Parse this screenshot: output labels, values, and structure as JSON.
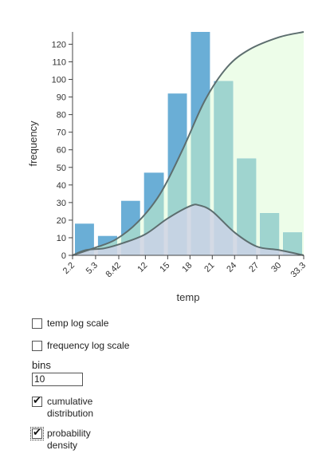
{
  "chart_data": {
    "type": "bar",
    "xlabel": "temp",
    "ylabel": "frequency",
    "x_ticks": [
      "2.2",
      "5.3",
      "8.42",
      "12",
      "15",
      "18",
      "21",
      "24",
      "27",
      "30",
      "33.3"
    ],
    "x_domain": [
      2.2,
      33.3
    ],
    "ylim": [
      0,
      127
    ],
    "y_ticks": [
      0,
      10,
      20,
      30,
      40,
      50,
      60,
      70,
      80,
      90,
      100,
      110,
      120
    ],
    "bins": [
      {
        "x0": 2.2,
        "x1": 5.3,
        "value": 18
      },
      {
        "x0": 5.3,
        "x1": 8.42,
        "value": 11
      },
      {
        "x0": 8.42,
        "x1": 11.5,
        "value": 31
      },
      {
        "x0": 11.5,
        "x1": 14.7,
        "value": 47
      },
      {
        "x0": 14.7,
        "x1": 17.8,
        "value": 92
      },
      {
        "x0": 17.8,
        "x1": 20.9,
        "value": 127
      },
      {
        "x0": 20.9,
        "x1": 24.0,
        "value": 99
      },
      {
        "x0": 24.0,
        "x1": 27.1,
        "value": 55
      },
      {
        "x0": 27.1,
        "x1": 30.2,
        "value": 24
      },
      {
        "x0": 30.2,
        "x1": 33.3,
        "value": 13
      }
    ],
    "cumulative_curve": [
      [
        2.2,
        0
      ],
      [
        5,
        4
      ],
      [
        8,
        9
      ],
      [
        11,
        19
      ],
      [
        14,
        35
      ],
      [
        17,
        60
      ],
      [
        20,
        88
      ],
      [
        23,
        107
      ],
      [
        26,
        117
      ],
      [
        30,
        124
      ],
      [
        33.3,
        127
      ]
    ],
    "density_curve": [
      [
        2.2,
        0
      ],
      [
        4,
        3
      ],
      [
        6.5,
        4
      ],
      [
        9,
        7
      ],
      [
        12,
        12
      ],
      [
        15,
        21
      ],
      [
        18,
        28
      ],
      [
        19.2,
        28.5
      ],
      [
        21,
        25
      ],
      [
        24,
        13
      ],
      [
        27,
        5
      ],
      [
        30,
        3
      ],
      [
        33.3,
        0
      ]
    ],
    "colors": {
      "bar": "#6aaed6",
      "bar_over_cumulative": "#9fd4cf",
      "bar_over_density": "#c5d3e3",
      "cumulative_fill": "#edfde9",
      "density_fill": "#d4dae5",
      "curve_stroke": "#5d6e6f",
      "axis": "#444444"
    }
  },
  "controls": {
    "temp_log_scale": {
      "label": "temp log scale",
      "checked": false
    },
    "frequency_log_scale": {
      "label": "frequency log scale",
      "checked": false
    },
    "bins": {
      "label": "bins",
      "value": "10"
    },
    "cumulative_distribution": {
      "label_line1": "cumulative",
      "label_line2": "distribution",
      "checked": true
    },
    "probability_density": {
      "label_line1": "probability",
      "label_line2": "density",
      "checked": true
    }
  }
}
